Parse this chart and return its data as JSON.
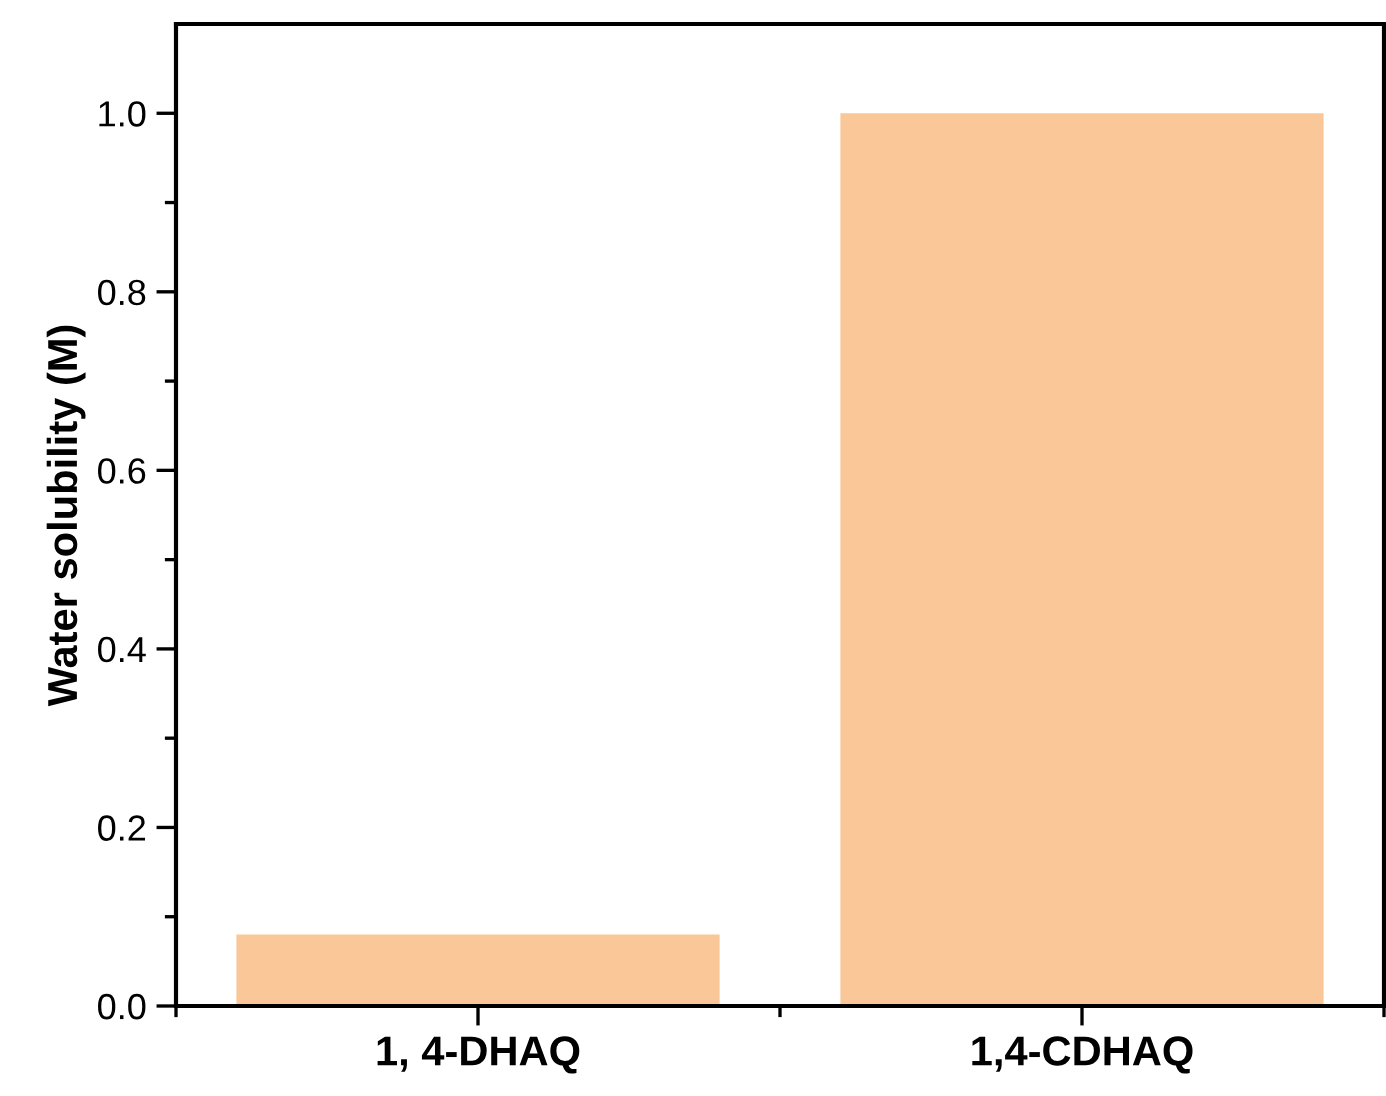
{
  "chart_data": {
    "type": "bar",
    "ylabel": "Water solubility (M)",
    "categories": [
      "1, 4-DHAQ",
      "1,4-CDHAQ"
    ],
    "values": [
      0.08,
      1.0
    ],
    "color": "#f9c798",
    "ylim": [
      0,
      1.1
    ],
    "yticks": [
      {
        "value": 0,
        "label": "0.0"
      },
      {
        "value": 0.1,
        "label": null
      },
      {
        "value": 0.2,
        "label": "0.2"
      },
      {
        "value": 0.3,
        "label": null
      },
      {
        "value": 0.4,
        "label": "0.4"
      },
      {
        "value": 0.5,
        "label": null
      },
      {
        "value": 0.6,
        "label": "0.6"
      },
      {
        "value": 0.7,
        "label": null
      },
      {
        "value": 0.8,
        "label": "0.8"
      },
      {
        "value": 0.9,
        "label": null
      },
      {
        "value": 1.0,
        "label": "1.0"
      }
    ],
    "grid": false
  }
}
